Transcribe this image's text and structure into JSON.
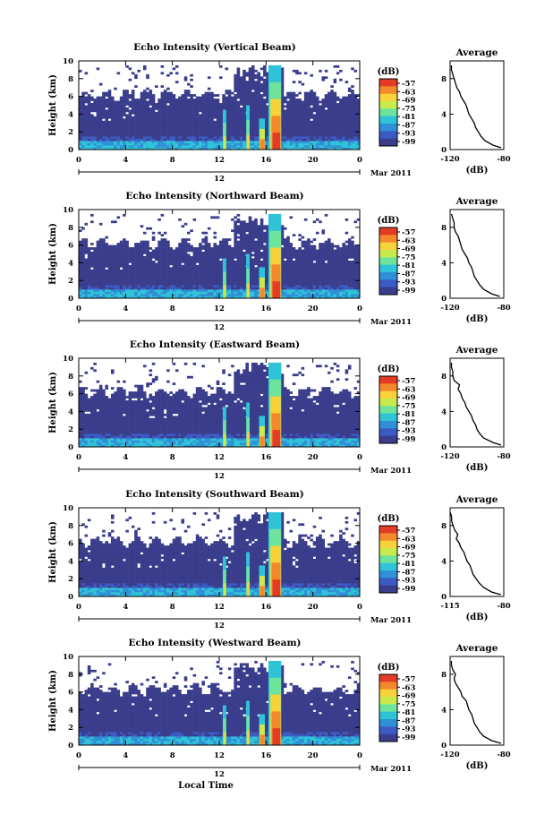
{
  "chart_data": [
    {
      "type": "heatmap",
      "title": "Echo Intensity (Vertical Beam)",
      "ylabel": "Height (km)",
      "ylim": [
        0,
        10
      ],
      "xlim": [
        0,
        24
      ],
      "x_ticks": [
        "0",
        "4",
        "8",
        "12",
        "16",
        "20",
        "0"
      ],
      "y_ticks": [
        "0",
        "2",
        "4",
        "6",
        "8",
        "10"
      ],
      "date_marker": "12",
      "date_label": "Mar 2011",
      "colorbar": {
        "unit": "(dB)",
        "ticks": [
          "-57",
          "-63",
          "-69",
          "-75",
          "-81",
          "-87",
          "-93",
          "-99"
        ],
        "colors": [
          "#3a3d8c",
          "#3b5bc4",
          "#2f90d6",
          "#2fc3d8",
          "#6de39c",
          "#c9ea4c",
          "#f7d23a",
          "#f4892c",
          "#e23b26"
        ]
      },
      "average_profile": {
        "title": "Average",
        "xlabel": "(dB)",
        "x_ticks": [
          "-120",
          "-80"
        ],
        "xlim": [
          -120,
          -80
        ],
        "y": [
          0.2,
          0.5,
          1,
          1.5,
          2,
          2.5,
          3,
          3.5,
          4,
          4.5,
          5,
          5.5,
          6,
          6.5,
          7,
          7.5,
          8,
          8.5,
          9,
          9.5
        ],
        "x": [
          -82,
          -88,
          -94,
          -97,
          -99,
          -101,
          -102,
          -104,
          -106,
          -107,
          -108,
          -110,
          -112,
          -113,
          -115,
          -116,
          -117,
          -118,
          -119,
          -119
        ]
      }
    },
    {
      "type": "heatmap",
      "title": "Echo Intensity (Northward Beam)",
      "ylabel": "Height (km)",
      "ylim": [
        0,
        10
      ],
      "xlim": [
        0,
        24
      ],
      "x_ticks": [
        "0",
        "4",
        "8",
        "12",
        "16",
        "20",
        "0"
      ],
      "y_ticks": [
        "0",
        "2",
        "4",
        "6",
        "8",
        "10"
      ],
      "date_marker": "12",
      "date_label": "Mar 2011",
      "colorbar": {
        "unit": "(dB)",
        "ticks": [
          "-57",
          "-63",
          "-69",
          "-75",
          "-81",
          "-87",
          "-93",
          "-99"
        ],
        "colors": [
          "#3a3d8c",
          "#3b5bc4",
          "#2f90d6",
          "#2fc3d8",
          "#6de39c",
          "#c9ea4c",
          "#f7d23a",
          "#f4892c",
          "#e23b26"
        ]
      },
      "average_profile": {
        "title": "Average",
        "xlabel": "(dB)",
        "x_ticks": [
          "-120",
          "-80"
        ],
        "xlim": [
          -120,
          -80
        ],
        "y": [
          0.2,
          0.5,
          1,
          1.5,
          2,
          2.5,
          3,
          3.5,
          4,
          4.5,
          5,
          5.5,
          6,
          6.5,
          7,
          7.5,
          8,
          8.5,
          9,
          9.5
        ],
        "x": [
          -83,
          -89,
          -95,
          -98,
          -100,
          -102,
          -103,
          -104,
          -106,
          -107,
          -109,
          -111,
          -112,
          -113,
          -114,
          -116,
          -117,
          -117,
          -118,
          -119
        ]
      }
    },
    {
      "type": "heatmap",
      "title": "Echo Intensity (Eastward Beam)",
      "ylabel": "Height (km)",
      "ylim": [
        0,
        10
      ],
      "xlim": [
        0,
        24
      ],
      "x_ticks": [
        "0",
        "4",
        "8",
        "12",
        "16",
        "20",
        "0"
      ],
      "y_ticks": [
        "0",
        "2",
        "4",
        "6",
        "8",
        "10"
      ],
      "date_marker": "12",
      "date_label": "Mar 2011",
      "colorbar": {
        "unit": "(dB)",
        "ticks": [
          "-57",
          "-63",
          "-69",
          "-75",
          "-81",
          "-87",
          "-93",
          "-99"
        ],
        "colors": [
          "#3a3d8c",
          "#3b5bc4",
          "#2f90d6",
          "#2fc3d8",
          "#6de39c",
          "#c9ea4c",
          "#f7d23a",
          "#f4892c",
          "#e23b26"
        ]
      },
      "average_profile": {
        "title": "Average",
        "xlabel": "(dB)",
        "x_ticks": [
          "-120",
          "-80"
        ],
        "xlim": [
          -120,
          -80
        ],
        "y": [
          0.2,
          0.5,
          1,
          1.5,
          2,
          2.5,
          3,
          3.5,
          4,
          4.5,
          5,
          5.5,
          6,
          6.5,
          7,
          7.5,
          8,
          8.5,
          9,
          9.5
        ],
        "x": [
          -82,
          -88,
          -95,
          -98,
          -100,
          -101,
          -103,
          -104,
          -106,
          -108,
          -109,
          -111,
          -112,
          -114,
          -113,
          -117,
          -118,
          -118,
          -119,
          -119
        ]
      }
    },
    {
      "type": "heatmap",
      "title": "Echo Intensity (Southward Beam)",
      "ylabel": "Height (km)",
      "ylim": [
        0,
        10
      ],
      "xlim": [
        0,
        24
      ],
      "x_ticks": [
        "0",
        "4",
        "8",
        "12",
        "16",
        "20",
        "0"
      ],
      "y_ticks": [
        "0",
        "2",
        "4",
        "6",
        "8",
        "10"
      ],
      "date_marker": "12",
      "date_label": "Mar 2011",
      "colorbar": {
        "unit": "(dB)",
        "ticks": [
          "-57",
          "-63",
          "-69",
          "-75",
          "-81",
          "-87",
          "-93",
          "-99"
        ],
        "colors": [
          "#3a3d8c",
          "#3b5bc4",
          "#2f90d6",
          "#2fc3d8",
          "#6de39c",
          "#c9ea4c",
          "#f7d23a",
          "#f4892c",
          "#e23b26"
        ]
      },
      "average_profile": {
        "title": "Average",
        "xlabel": "(dB)",
        "x_ticks": [
          "-115",
          "-80"
        ],
        "xlim": [
          -115,
          -80
        ],
        "y": [
          0.2,
          0.5,
          1,
          1.5,
          2,
          2.5,
          3,
          3.5,
          4,
          4.5,
          5,
          5.5,
          6,
          6.5,
          7,
          7.5,
          8,
          8.5,
          9,
          9.5
        ],
        "x": [
          -82,
          -88,
          -93,
          -96,
          -98,
          -100,
          -101,
          -102,
          -104,
          -105,
          -106,
          -108,
          -109,
          -111,
          -110,
          -112,
          -113,
          -114,
          -114,
          -115
        ]
      }
    },
    {
      "type": "heatmap",
      "title": "Echo Intensity (Westward Beam)",
      "ylabel": "Height (km)",
      "xlabel": "Local Time",
      "ylim": [
        0,
        10
      ],
      "xlim": [
        0,
        24
      ],
      "x_ticks": [
        "0",
        "4",
        "8",
        "12",
        "16",
        "20",
        "0"
      ],
      "y_ticks": [
        "0",
        "2",
        "4",
        "6",
        "8",
        "10"
      ],
      "date_marker": "12",
      "date_label": "Mar 2011",
      "colorbar": {
        "unit": "(dB)",
        "ticks": [
          "-57",
          "-63",
          "-69",
          "-75",
          "-81",
          "-87",
          "-93",
          "-99"
        ],
        "colors": [
          "#3a3d8c",
          "#3b5bc4",
          "#2f90d6",
          "#2fc3d8",
          "#6de39c",
          "#c9ea4c",
          "#f7d23a",
          "#f4892c",
          "#e23b26"
        ]
      },
      "average_profile": {
        "title": "Average",
        "xlabel": "(dB)",
        "x_ticks": [
          "-120",
          "-80"
        ],
        "xlim": [
          -120,
          -80
        ],
        "y": [
          0.2,
          0.5,
          1,
          1.5,
          2,
          2.5,
          3,
          3.5,
          4,
          4.5,
          5,
          5.5,
          6,
          6.5,
          7,
          7.5,
          8,
          8.5,
          9,
          9.5
        ],
        "x": [
          -82,
          -89,
          -95,
          -98,
          -100,
          -102,
          -103,
          -104,
          -106,
          -107,
          -108,
          -111,
          -112,
          -114,
          -116,
          -117,
          -116,
          -118,
          -119,
          -119
        ]
      }
    }
  ],
  "figure": {
    "xlabel": "Local Time"
  }
}
